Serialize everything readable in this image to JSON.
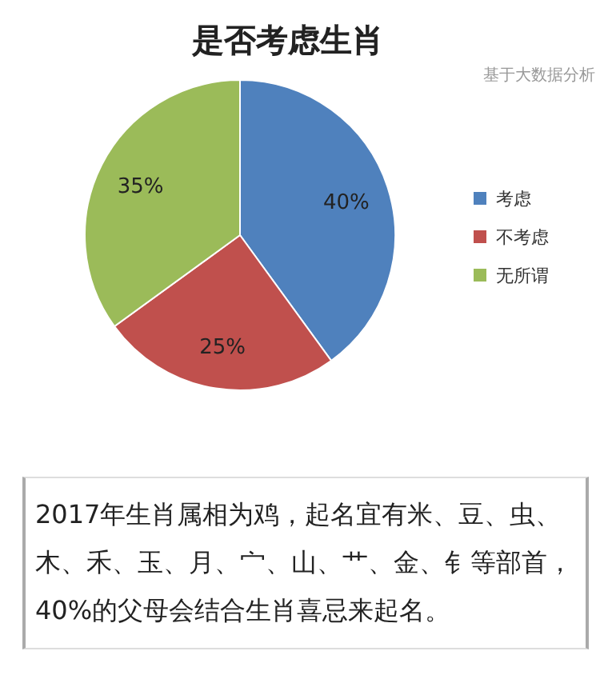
{
  "chart_data": {
    "type": "pie",
    "title": "是否考虑生肖",
    "subtitle": "基于大数据分析",
    "categories": [
      "考虑",
      "不考虑",
      "无所谓"
    ],
    "values": [
      40,
      25,
      35
    ],
    "colors": [
      "#4f81bd",
      "#c0504d",
      "#9bbb59"
    ],
    "value_labels": [
      "40%",
      "25%",
      "35%"
    ],
    "legend": "right",
    "annotations": [
      "2017年生肖属相为鸡，起名宜有米、豆、虫、木、禾、玉、月、宀、山、艹、金、钅等部首，40%的父母会结合生肖喜忌来起名。"
    ]
  }
}
